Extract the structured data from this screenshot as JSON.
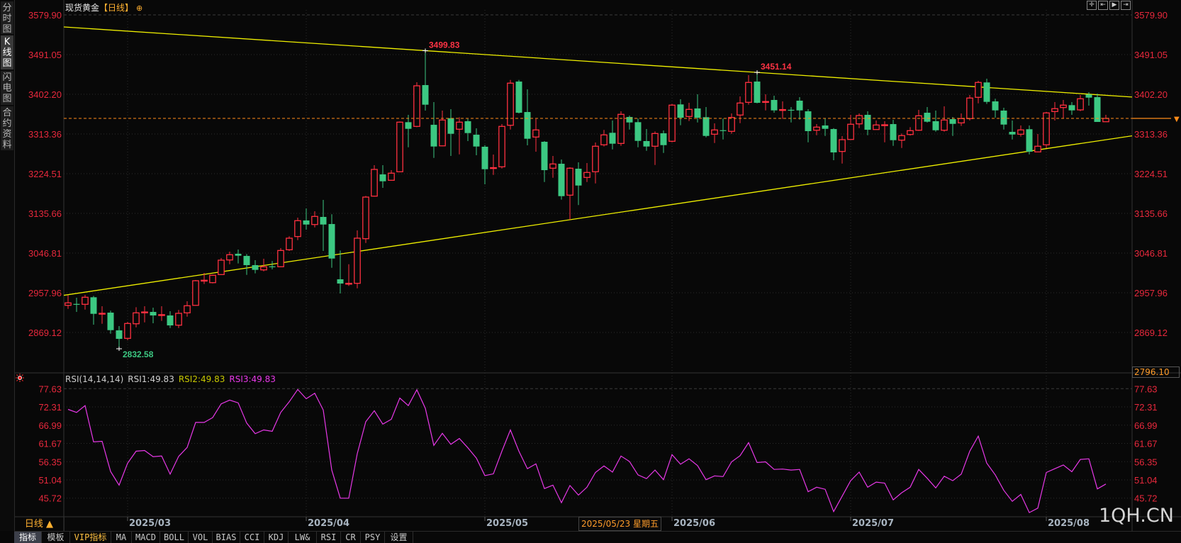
{
  "sidebar": {
    "items": [
      {
        "label": "分时图",
        "active": false
      },
      {
        "label": "K线图",
        "active": true
      },
      {
        "label": "闪电图",
        "active": false
      },
      {
        "label": "合约资料",
        "active": false
      }
    ]
  },
  "header": {
    "symbol": "现货黄金",
    "timeframe": "【日线】",
    "add_icon": "circle-plus-icon"
  },
  "top_buttons": [
    {
      "name": "crosshair-button",
      "glyph": "✛"
    },
    {
      "name": "zoom-start-button",
      "glyph": "⇤"
    },
    {
      "name": "play-button",
      "glyph": "▶"
    },
    {
      "name": "zoom-end-button",
      "glyph": "⇥"
    }
  ],
  "colors": {
    "up": "#ff3040",
    "down": "#3cc882",
    "trendline": "#f0f000",
    "price_line": "#ff8c1a",
    "rsi": "#e838e8",
    "axis_label": "#e8283c",
    "grid": "#2c2c2c"
  },
  "price_axis": {
    "labels": [
      "3579.90",
      "3491.05",
      "3402.20",
      "3313.36",
      "3224.51",
      "3135.66",
      "3046.81",
      "2957.96",
      "2869.12"
    ],
    "bottom_label": "2796.10"
  },
  "rsi_axis": {
    "labels": [
      "77.63",
      "72.31",
      "66.99",
      "61.67",
      "56.35",
      "51.04",
      "45.72"
    ]
  },
  "rsi_header": {
    "name": "RSI(14,14,14)",
    "rsi1": "RSI1:49.83",
    "rsi2": "RSI2:49.83",
    "rsi3": "RSI3:49.83",
    "rsi1_color": "#d0d0d0",
    "rsi2_color": "#c8c800",
    "rsi3_color": "#e838e8"
  },
  "date_axis": {
    "period": "日线 ▲",
    "ticks": [
      {
        "label": "2025/03",
        "date": "2025-03-03"
      },
      {
        "label": "2025/04",
        "date": "2025-04-01"
      },
      {
        "label": "2025/05",
        "date": "2025-05-01"
      },
      {
        "label": "2025/06",
        "date": "2025-06-02"
      },
      {
        "label": "2025/07",
        "date": "2025-07-01"
      },
      {
        "label": "2025/08",
        "date": "2025-08-01"
      }
    ],
    "tooltip": "2025/05/23 星期五"
  },
  "toolbar": {
    "items": [
      "指标",
      "模板",
      "VIP指标",
      "MA",
      "MACD",
      "BOLL",
      "VOL",
      "BIAS",
      "CCI",
      "KDJ",
      "LW&",
      "RSI",
      "CR",
      "PSY",
      "设置"
    ],
    "active": "指标",
    "vip": "VIP指标"
  },
  "watermark": "1QH.CN",
  "chart_data": {
    "type": "candlestick",
    "title": "现货黄金【日线】",
    "price_range": [
      2796.1,
      3579.9
    ],
    "annotations": [
      {
        "label": "3499.83",
        "date": "2025-04-22",
        "price": 3499.83,
        "kind": "high"
      },
      {
        "label": "3451.14",
        "date": "2025-06-16",
        "price": 3451.14,
        "kind": "high"
      },
      {
        "label": "2832.58",
        "date": "2025-02-28",
        "price": 2832.58,
        "kind": "low"
      }
    ],
    "trendlines": [
      {
        "points": [
          [
            "2025-04-22",
            3499.83
          ],
          [
            "2025-06-16",
            3451.14
          ]
        ]
      },
      {
        "points": [
          [
            "2025-05-15",
            3121.4
          ],
          [
            "2025-07-21",
            3255.0
          ]
        ]
      }
    ],
    "last_price": 3348.2,
    "candles_format": [
      "date",
      "open",
      "high",
      "low",
      "close"
    ],
    "candles": [
      [
        "2025-02-20",
        2929.8,
        2952.1,
        2921.9,
        2935.3
      ],
      [
        "2025-02-21",
        2933.0,
        2946.8,
        2915.1,
        2932.5
      ],
      [
        "2025-02-24",
        2932.1,
        2953.2,
        2920.3,
        2947.9
      ],
      [
        "2025-02-25",
        2947.9,
        2951.1,
        2886.5,
        2910.8
      ],
      [
        "2025-02-26",
        2911.0,
        2927.8,
        2888.6,
        2912.0
      ],
      [
        "2025-02-27",
        2913.5,
        2917.8,
        2866.4,
        2874.3
      ],
      [
        "2025-02-28",
        2873.8,
        2883.4,
        2832.58,
        2854.8
      ],
      [
        "2025-03-03",
        2855.9,
        2892.9,
        2851.6,
        2889.2
      ],
      [
        "2025-03-04",
        2888.6,
        2925.7,
        2880.7,
        2913.0
      ],
      [
        "2025-03-05",
        2914.0,
        2927.8,
        2891.8,
        2915.0
      ],
      [
        "2025-03-06",
        2915.1,
        2924.6,
        2889.7,
        2907.2
      ],
      [
        "2025-03-07",
        2908.0,
        2927.8,
        2895.0,
        2909.0
      ],
      [
        "2025-03-10",
        2907.2,
        2916.7,
        2879.1,
        2884.9
      ],
      [
        "2025-03-11",
        2885.4,
        2919.4,
        2879.1,
        2911.9
      ],
      [
        "2025-03-12",
        2913.0,
        2938.9,
        2904.5,
        2928.9
      ],
      [
        "2025-03-13",
        2929.8,
        2986.5,
        2929.0,
        2984.9
      ],
      [
        "2025-03-14",
        2985.0,
        3002.4,
        2977.5,
        2986.0
      ],
      [
        "2025-03-17",
        2980.6,
        2998.7,
        2979.0,
        2997.1
      ],
      [
        "2025-03-18",
        2998.7,
        3035.7,
        2998.0,
        3030.9
      ],
      [
        "2025-03-19",
        3031.4,
        3049.9,
        3021.9,
        3043.1
      ],
      [
        "2025-03-20",
        3045.2,
        3054.7,
        3023.5,
        3040.9
      ],
      [
        "2025-03-21",
        3040.4,
        3044.7,
        2998.1,
        3019.8
      ],
      [
        "2025-03-24",
        3019.8,
        3030.9,
        3001.3,
        3009.2
      ],
      [
        "2025-03-25",
        3009.2,
        3034.1,
        3006.0,
        3016.2
      ],
      [
        "2025-03-26",
        3017.0,
        3028.9,
        3010.3,
        3016.0
      ],
      [
        "2025-03-27",
        3016.2,
        3057.9,
        3015.0,
        3052.6
      ],
      [
        "2025-03-28",
        3054.2,
        3084.4,
        3051.6,
        3080.1
      ],
      [
        "2025-03-31",
        3083.8,
        3126.1,
        3075.8,
        3119.3
      ],
      [
        "2025-04-01",
        3119.8,
        3146.7,
        3099.1,
        3110.7
      ],
      [
        "2025-04-02",
        3110.7,
        3140.4,
        3104.4,
        3128.8
      ],
      [
        "2025-04-03",
        3127.7,
        3165.8,
        3051.6,
        3110.7
      ],
      [
        "2025-04-04",
        3111.8,
        3133.6,
        3013.9,
        3034.6
      ],
      [
        "2025-04-07",
        2988.1,
        3052.6,
        2956.3,
        2978.6
      ],
      [
        "2025-04-08",
        2978.5,
        3021.9,
        2973.3,
        2979.1
      ],
      [
        "2025-04-09",
        2979.1,
        3097.5,
        2967.9,
        3080.1
      ],
      [
        "2025-04-10",
        3079.0,
        3174.8,
        3069.5,
        3172.1
      ],
      [
        "2025-04-11",
        3174.2,
        3243.5,
        3173.0,
        3234.0
      ],
      [
        "2025-04-14",
        3222.9,
        3243.5,
        3192.8,
        3207.5
      ],
      [
        "2025-04-15",
        3209.7,
        3232.4,
        3209.0,
        3225.6
      ],
      [
        "2025-04-16",
        3228.8,
        3341.4,
        3228.0,
        3339.8
      ],
      [
        "2025-04-17",
        3339.8,
        3356.2,
        3283.7,
        3324.9
      ],
      [
        "2025-04-21",
        3330.3,
        3429.2,
        3328.7,
        3421.2
      ],
      [
        "2025-04-22",
        3422.8,
        3499.83,
        3365.7,
        3378.9
      ],
      [
        "2025-04-23",
        3333.9,
        3384.7,
        3259.9,
        3285.3
      ],
      [
        "2025-04-24",
        3286.8,
        3365.7,
        3286.0,
        3344.6
      ],
      [
        "2025-04-25",
        3348.7,
        3368.9,
        3264.1,
        3313.8
      ],
      [
        "2025-04-28",
        3324.0,
        3350.9,
        3267.8,
        3339.8
      ],
      [
        "2025-04-29",
        3341.9,
        3347.1,
        3297.5,
        3315.4
      ],
      [
        "2025-04-30",
        3311.7,
        3326.0,
        3265.7,
        3285.3
      ],
      [
        "2025-05-01",
        3284.8,
        3288.4,
        3200.7,
        3234.5
      ],
      [
        "2025-05-02",
        3237.0,
        3267.3,
        3221.8,
        3238.0
      ],
      [
        "2025-05-05",
        3239.9,
        3335.5,
        3236.1,
        3330.3
      ],
      [
        "2025-05-06",
        3332.8,
        3434.4,
        3323.3,
        3427.1
      ],
      [
        "2025-05-07",
        3430.7,
        3434.4,
        3359.3,
        3360.9
      ],
      [
        "2025-05-08",
        3362.5,
        3413.3,
        3287.9,
        3302.7
      ],
      [
        "2025-05-09",
        3306.5,
        3347.1,
        3273.7,
        3322.4
      ],
      [
        "2025-05-12",
        3295.9,
        3297.5,
        3205.9,
        3232.4
      ],
      [
        "2025-05-13",
        3236.7,
        3264.1,
        3215.4,
        3246.2
      ],
      [
        "2025-05-14",
        3246.7,
        3256.2,
        3166.3,
        3174.2
      ],
      [
        "2025-05-15",
        3176.4,
        3238.8,
        3121.4,
        3236.7
      ],
      [
        "2025-05-16",
        3235.6,
        3249.9,
        3154.2,
        3198.0
      ],
      [
        "2025-05-19",
        3216.1,
        3248.3,
        3205.9,
        3227.2
      ],
      [
        "2025-05-20",
        3228.8,
        3294.3,
        3202.7,
        3285.9
      ],
      [
        "2025-05-21",
        3289.1,
        3322.4,
        3285.3,
        3311.3
      ],
      [
        "2025-05-22",
        3316.0,
        3343.5,
        3278.9,
        3291.6
      ],
      [
        "2025-05-23",
        3292.2,
        3364.1,
        3286.8,
        3357.3
      ],
      [
        "2025-05-26",
        3351.4,
        3354.6,
        3323.3,
        3339.2
      ],
      [
        "2025-05-27",
        3339.8,
        3347.8,
        3283.7,
        3297.9
      ],
      [
        "2025-05-28",
        3297.5,
        3324.4,
        3275.7,
        3285.3
      ],
      [
        "2025-05-29",
        3285.9,
        3319.2,
        3244.0,
        3314.4
      ],
      [
        "2025-05-30",
        3314.9,
        3321.3,
        3270.9,
        3288.4
      ],
      [
        "2025-06-02",
        3297.0,
        3380.5,
        3294.8,
        3377.9
      ],
      [
        "2025-06-03",
        3379.5,
        3391.1,
        3332.9,
        3349.8
      ],
      [
        "2025-06-04",
        3352.5,
        3383.1,
        3342.4,
        3368.4
      ],
      [
        "2025-06-05",
        3370.5,
        3402.2,
        3339.2,
        3349.8
      ],
      [
        "2025-06-06",
        3350.9,
        3373.6,
        3305.9,
        3309.0
      ],
      [
        "2025-06-09",
        3312.8,
        3337.1,
        3293.2,
        3322.4
      ],
      [
        "2025-06-10",
        3321.8,
        3347.8,
        3301.1,
        3321.0
      ],
      [
        "2025-06-11",
        3319.2,
        3359.3,
        3313.8,
        3350.3
      ],
      [
        "2025-06-12",
        3355.7,
        3397.4,
        3337.6,
        3382.6
      ],
      [
        "2025-06-13",
        3384.2,
        3445.0,
        3378.9,
        3428.7
      ],
      [
        "2025-06-16",
        3430.7,
        3451.14,
        3382.0,
        3383.1
      ],
      [
        "2025-06-17",
        3385.0,
        3402.2,
        3366.2,
        3386.0
      ],
      [
        "2025-06-18",
        3389.5,
        3399.0,
        3360.9,
        3366.2
      ],
      [
        "2025-06-19",
        3367.0,
        3386.3,
        3347.1,
        3368.0
      ],
      [
        "2025-06-20",
        3367.5,
        3373.6,
        3339.2,
        3366.5
      ],
      [
        "2025-06-23",
        3387.9,
        3395.8,
        3345.5,
        3366.2
      ],
      [
        "2025-06-24",
        3364.1,
        3368.9,
        3294.8,
        3319.7
      ],
      [
        "2025-06-25",
        3321.7,
        3335.5,
        3310.6,
        3328.7
      ],
      [
        "2025-06-26",
        3332.4,
        3348.2,
        3309.0,
        3324.9
      ],
      [
        "2025-06-27",
        3324.4,
        3326.5,
        3254.6,
        3272.1
      ],
      [
        "2025-06-30",
        3274.2,
        3308.6,
        3247.2,
        3300.6
      ],
      [
        "2025-07-01",
        3301.1,
        3356.2,
        3300.5,
        3335.1
      ],
      [
        "2025-07-02",
        3336.0,
        3359.3,
        3326.5,
        3354.6
      ],
      [
        "2025-07-03",
        3356.2,
        3364.1,
        3310.6,
        3322.8
      ],
      [
        "2025-07-04",
        3323.3,
        3343.5,
        3323.0,
        3333.5
      ],
      [
        "2025-07-07",
        3333.0,
        3341.9,
        3294.8,
        3334.0
      ],
      [
        "2025-07-08",
        3335.5,
        3345.1,
        3286.8,
        3299.5
      ],
      [
        "2025-07-09",
        3299.5,
        3314.4,
        3282.1,
        3309.7
      ],
      [
        "2025-07-10",
        3312.2,
        3328.7,
        3309.7,
        3320.8
      ],
      [
        "2025-07-11",
        3321.7,
        3367.3,
        3320.2,
        3354.1
      ],
      [
        "2025-07-14",
        3360.9,
        3373.6,
        3339.0,
        3340.8
      ],
      [
        "2025-07-15",
        3341.9,
        3365.7,
        3318.6,
        3321.7
      ],
      [
        "2025-07-16",
        3321.7,
        3375.2,
        3318.6,
        3344.6
      ],
      [
        "2025-07-17",
        3346.6,
        3351.4,
        3309.0,
        3336.0
      ],
      [
        "2025-07-18",
        3338.2,
        3359.3,
        3331.3,
        3347.8
      ],
      [
        "2025-07-21",
        3347.8,
        3400.6,
        3343.5,
        3393.8
      ],
      [
        "2025-07-22",
        3395.4,
        3432.3,
        3382.0,
        3428.7
      ],
      [
        "2025-07-23",
        3428.7,
        3437.1,
        3380.5,
        3385.2
      ],
      [
        "2025-07-24",
        3386.3,
        3392.2,
        3349.8,
        3366.2
      ],
      [
        "2025-07-25",
        3365.7,
        3372.0,
        3323.3,
        3334.4
      ],
      [
        "2025-07-28",
        3318.1,
        3343.5,
        3301.1,
        3312.2
      ],
      [
        "2025-07-29",
        3312.8,
        3332.4,
        3307.5,
        3322.4
      ],
      [
        "2025-07-30",
        3324.0,
        3332.4,
        3267.8,
        3273.7
      ],
      [
        "2025-07-31",
        3273.2,
        3313.3,
        3272.5,
        3285.9
      ],
      [
        "2025-08-01",
        3289.1,
        3363.0,
        3281.6,
        3360.5
      ],
      [
        "2025-08-04",
        3363.6,
        3384.7,
        3343.5,
        3370.0
      ],
      [
        "2025-08-05",
        3372.5,
        3389.5,
        3348.7,
        3377.9
      ],
      [
        "2025-08-06",
        3377.9,
        3384.7,
        3356.2,
        3366.2
      ],
      [
        "2025-08-07",
        3367.3,
        3400.6,
        3364.6,
        3392.2
      ],
      [
        "2025-08-08",
        3401.7,
        3406.9,
        3376.8,
        3394.7
      ],
      [
        "2025-08-11",
        3395.8,
        3403.8,
        3340.3,
        3340.3
      ],
      [
        "2025-08-12",
        3340.8,
        3356.2,
        3340.3,
        3348.2
      ]
    ],
    "rsi": {
      "params": [
        14,
        14,
        14
      ],
      "range": [
        45.72,
        77.63
      ],
      "values": [
        71.6,
        70.7,
        72.7,
        62.1,
        62.3,
        53.5,
        49.5,
        55.9,
        59.4,
        59.6,
        57.8,
        58.0,
        52.7,
        57.9,
        60.5,
        67.8,
        67.8,
        69.2,
        73.2,
        74.3,
        73.5,
        67.6,
        64.5,
        65.6,
        65.2,
        70.7,
        73.8,
        77.4,
        74.7,
        76.3,
        71.4,
        53.9,
        45.7,
        45.7,
        58.7,
        68.0,
        71.2,
        67.3,
        68.7,
        74.9,
        72.7,
        77.3,
        71.9,
        61.1,
        64.6,
        61.4,
        63.1,
        60.4,
        57.4,
        52.3,
        52.8,
        59.4,
        65.6,
        59.4,
        54.3,
        55.7,
        48.5,
        49.5,
        44.4,
        49.4,
        46.6,
        48.9,
        53.2,
        55.1,
        53.3,
        58.0,
        56.4,
        52.5,
        51.4,
        53.9,
        51.1,
        58.4,
        55.6,
        57.2,
        55.2,
        51.1,
        52.2,
        52.0,
        56.3,
        58.1,
        61.9,
        56.1,
        56.3,
        54.1,
        54.2,
        53.9,
        54.1,
        47.6,
        48.9,
        48.3,
        41.8,
        46.3,
        50.8,
        53.3,
        48.9,
        50.4,
        50.1,
        45.2,
        47.3,
        48.9,
        54.1,
        51.5,
        48.7,
        52.1,
        50.8,
        52.7,
        59.4,
        63.8,
        55.9,
        52.5,
        48.0,
        44.8,
        46.8,
        41.5,
        42.8,
        53.2,
        54.3,
        55.4,
        53.4,
        57.0,
        57.2,
        48.4,
        49.83
      ]
    }
  }
}
